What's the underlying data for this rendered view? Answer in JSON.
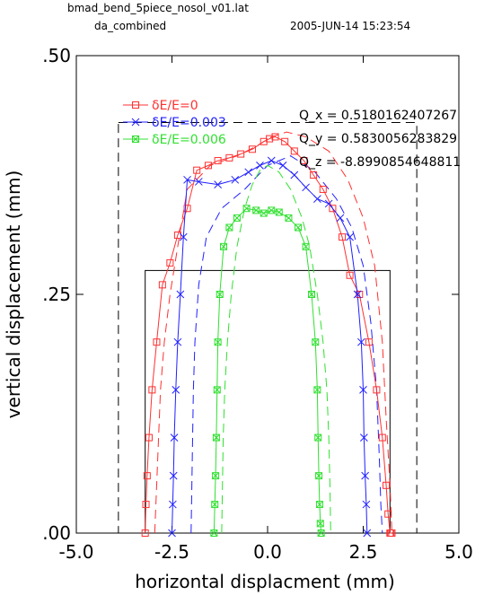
{
  "header": {
    "file": "bmad_bend_5piece_nosol_v01.lat",
    "sub": "da_combined",
    "date": "2005-JUN-14   15:23:54"
  },
  "tunes": [
    "Q_x  =  0.5180162407267",
    "Q_y  =  0.5830056283829",
    "Q_z  =  -8.8990854648811"
  ],
  "colors": {
    "red": "#ff3030",
    "blue": "#2020ff",
    "green": "#30e030"
  },
  "chart_data": {
    "type": "line",
    "xlabel": "horizontal displacment (mm)",
    "ylabel": "vertical displacement (mm)",
    "xlim": [
      -5.0,
      5.0
    ],
    "ylim": [
      0.0,
      0.5
    ],
    "xticks": [
      "-5.0",
      "-2.5",
      "0.0",
      "2.5",
      "5.0"
    ],
    "yticks": [
      ".00",
      ".25",
      ".50"
    ],
    "grid": false,
    "legend_position": "top-left",
    "series": [
      {
        "name": "δE/E=0",
        "color": "#ff3030",
        "marker": "square",
        "x": [
          -3.2,
          -3.18,
          -3.15,
          -3.1,
          -3.02,
          -2.9,
          -2.75,
          -2.55,
          -2.35,
          -2.1,
          -1.85,
          -1.55,
          -1.3,
          -1.0,
          -0.7,
          -0.4,
          -0.1,
          0.05,
          0.2,
          0.45,
          0.7,
          0.95,
          1.2,
          1.45,
          1.7,
          1.95,
          2.15,
          2.4,
          2.65,
          2.85,
          3.0,
          3.1,
          3.15,
          3.2,
          3.22,
          3.25
        ],
        "y": [
          0.0,
          0.03,
          0.06,
          0.1,
          0.15,
          0.2,
          0.26,
          0.283,
          0.312,
          0.34,
          0.38,
          0.385,
          0.39,
          0.393,
          0.397,
          0.402,
          0.41,
          0.413,
          0.415,
          0.41,
          0.4,
          0.39,
          0.375,
          0.36,
          0.34,
          0.31,
          0.27,
          0.25,
          0.2,
          0.15,
          0.1,
          0.05,
          0.02,
          0.0,
          0.0,
          0.0
        ]
      },
      {
        "name": "δE/E=0.003",
        "color": "#2020ff",
        "marker": "x",
        "x": [
          -2.5,
          -2.48,
          -2.46,
          -2.44,
          -2.4,
          -2.35,
          -2.28,
          -2.2,
          -2.1,
          -1.8,
          -1.3,
          -0.85,
          -0.5,
          -0.2,
          0.1,
          0.4,
          0.7,
          1.0,
          1.3,
          1.6,
          1.9,
          2.15,
          2.35,
          2.45,
          2.5,
          2.52,
          2.55,
          2.58,
          2.6
        ],
        "y": [
          0.0,
          0.03,
          0.06,
          0.1,
          0.15,
          0.2,
          0.25,
          0.31,
          0.37,
          0.368,
          0.365,
          0.37,
          0.378,
          0.385,
          0.39,
          0.385,
          0.375,
          0.362,
          0.35,
          0.345,
          0.33,
          0.31,
          0.25,
          0.2,
          0.15,
          0.1,
          0.06,
          0.03,
          0.0
        ]
      },
      {
        "name": "δE/E=0.006",
        "color": "#30e030",
        "marker": "boxx",
        "x": [
          -1.4,
          -1.38,
          -1.36,
          -1.34,
          -1.32,
          -1.3,
          -1.25,
          -1.15,
          -1.0,
          -0.8,
          -0.55,
          -0.3,
          -0.1,
          0.1,
          0.3,
          0.55,
          0.8,
          1.0,
          1.15,
          1.25,
          1.3,
          1.32,
          1.34,
          1.36,
          1.38,
          1.4
        ],
        "y": [
          0.0,
          0.03,
          0.06,
          0.1,
          0.15,
          0.2,
          0.25,
          0.3,
          0.32,
          0.33,
          0.34,
          0.338,
          0.335,
          0.338,
          0.336,
          0.33,
          0.32,
          0.3,
          0.25,
          0.2,
          0.15,
          0.1,
          0.06,
          0.03,
          0.01,
          0.0
        ]
      }
    ],
    "dashed_curves": [
      {
        "color": "#ff3030",
        "x": [
          -2.95,
          -2.9,
          -2.85,
          -2.8,
          -2.7,
          -2.55,
          -2.35,
          -2.1,
          -1.5,
          -0.8,
          -0.3,
          0.1,
          0.5,
          1.0,
          1.6,
          2.1,
          2.5,
          2.8,
          3.0,
          3.1,
          3.2,
          3.25
        ],
        "y": [
          0.0,
          0.05,
          0.1,
          0.15,
          0.2,
          0.25,
          0.3,
          0.36,
          0.385,
          0.395,
          0.405,
          0.415,
          0.42,
          0.415,
          0.4,
          0.37,
          0.33,
          0.28,
          0.2,
          0.12,
          0.05,
          0.0
        ]
      },
      {
        "color": "#2020ff",
        "x": [
          -2.0,
          -1.98,
          -1.96,
          -1.94,
          -1.9,
          -1.8,
          -1.6,
          -1.2,
          -0.6,
          0.0,
          0.6,
          1.2,
          1.8,
          2.2,
          2.5,
          2.7,
          2.85,
          2.92,
          2.96,
          3.0
        ],
        "y": [
          0.0,
          0.05,
          0.1,
          0.15,
          0.2,
          0.26,
          0.31,
          0.34,
          0.36,
          0.385,
          0.395,
          0.38,
          0.35,
          0.32,
          0.28,
          0.22,
          0.15,
          0.08,
          0.03,
          0.0
        ]
      },
      {
        "color": "#30e030",
        "x": [
          -1.2,
          -1.18,
          -1.16,
          -1.12,
          -1.05,
          -0.95,
          -0.8,
          -0.6,
          -0.4,
          -0.2,
          0.0,
          0.3,
          0.6,
          0.9,
          1.1,
          1.3,
          1.45,
          1.55,
          1.6,
          1.63,
          1.65
        ],
        "y": [
          0.0,
          0.05,
          0.1,
          0.15,
          0.2,
          0.25,
          0.3,
          0.34,
          0.365,
          0.38,
          0.385,
          0.378,
          0.36,
          0.33,
          0.3,
          0.25,
          0.2,
          0.15,
          0.1,
          0.05,
          0.0
        ]
      }
    ],
    "boxes": [
      {
        "style": "dashed",
        "x": [
          -3.9,
          3.9
        ],
        "y": [
          0.0,
          0.43
        ]
      },
      {
        "style": "solid",
        "x": [
          -3.2,
          3.2
        ],
        "y": [
          0.0,
          0.275
        ]
      }
    ]
  }
}
